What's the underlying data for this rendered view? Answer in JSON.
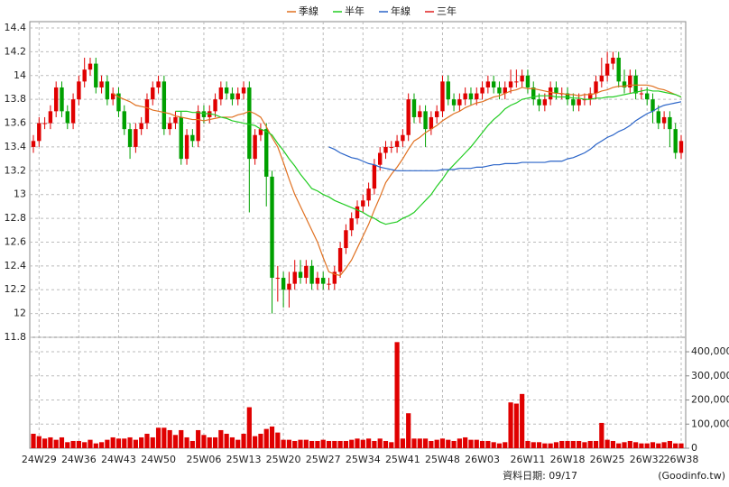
{
  "chart_data": {
    "type": "candlestick",
    "categories": [
      null,
      "24W29",
      null,
      null,
      null,
      null,
      null,
      null,
      "24W36",
      null,
      null,
      null,
      null,
      null,
      null,
      "24W43",
      null,
      null,
      null,
      null,
      null,
      null,
      "24W50",
      null,
      null,
      null,
      null,
      null,
      null,
      null,
      "25W06",
      null,
      null,
      null,
      null,
      null,
      null,
      "25W13",
      null,
      null,
      null,
      null,
      null,
      null,
      "25W20",
      null,
      null,
      null,
      null,
      null,
      null,
      "25W27",
      null,
      null,
      null,
      null,
      null,
      null,
      "25W34",
      null,
      null,
      null,
      null,
      null,
      null,
      "25W41",
      null,
      null,
      null,
      null,
      null,
      null,
      "25W48",
      null,
      null,
      null,
      null,
      null,
      null,
      "26W03",
      null,
      null,
      null,
      null,
      null,
      null,
      null,
      "26W11",
      null,
      null,
      null,
      null,
      null,
      null,
      "26W18",
      null,
      null,
      null,
      null,
      null,
      null,
      "26W25",
      null,
      null,
      null,
      null,
      null,
      null,
      "26W32",
      null,
      null,
      null,
      null,
      null,
      "26W38"
    ],
    "open": [
      13.4,
      13.45,
      13.6,
      13.6,
      13.7,
      13.9,
      13.7,
      13.6,
      13.8,
      13.95,
      14.05,
      14.1,
      13.9,
      13.95,
      13.8,
      13.85,
      13.7,
      13.55,
      13.4,
      13.55,
      13.6,
      13.8,
      13.9,
      13.95,
      13.55,
      13.6,
      13.65,
      13.3,
      13.5,
      13.45,
      13.7,
      13.65,
      13.7,
      13.8,
      13.9,
      13.85,
      13.8,
      13.85,
      13.9,
      13.3,
      13.5,
      13.55,
      13.15,
      12.3,
      12.3,
      12.2,
      12.25,
      12.35,
      12.3,
      12.4,
      12.25,
      12.3,
      12.25,
      12.25,
      12.35,
      12.55,
      12.7,
      12.8,
      12.9,
      12.95,
      13.05,
      13.25,
      13.35,
      13.4,
      13.4,
      13.45,
      13.5,
      13.8,
      13.65,
      13.7,
      13.55,
      13.65,
      13.7,
      13.95,
      13.8,
      13.75,
      13.8,
      13.85,
      13.8,
      13.85,
      13.9,
      13.95,
      13.9,
      13.85,
      13.9,
      13.95,
      13.95,
      14.0,
      13.9,
      13.8,
      13.75,
      13.8,
      13.9,
      13.85,
      13.85,
      13.8,
      13.75,
      13.8,
      13.8,
      13.85,
      13.95,
      14.0,
      14.1,
      14.15,
      13.95,
      13.9,
      14.0,
      13.85,
      13.85,
      13.8,
      13.7,
      13.6,
      13.65,
      13.55,
      13.35
    ],
    "high": [
      13.5,
      13.65,
      13.65,
      13.75,
      13.95,
      13.95,
      13.75,
      13.85,
      14.0,
      14.15,
      14.15,
      14.15,
      14.0,
      14.0,
      13.9,
      13.9,
      13.75,
      13.6,
      13.6,
      13.65,
      13.85,
      13.95,
      14.0,
      14.0,
      13.65,
      13.7,
      13.7,
      13.55,
      13.55,
      13.75,
      13.75,
      13.75,
      13.85,
      13.95,
      13.95,
      13.9,
      13.9,
      13.95,
      13.95,
      13.55,
      13.6,
      13.6,
      13.2,
      12.4,
      12.35,
      12.35,
      12.45,
      12.45,
      12.45,
      12.45,
      12.35,
      12.35,
      12.3,
      12.4,
      12.6,
      12.75,
      12.85,
      12.95,
      13.0,
      13.1,
      13.3,
      13.4,
      13.45,
      13.45,
      13.5,
      13.55,
      13.85,
      13.85,
      13.75,
      13.75,
      13.7,
      13.75,
      14.0,
      14.0,
      13.85,
      13.85,
      13.9,
      13.9,
      13.9,
      13.95,
      14.0,
      14.0,
      13.95,
      13.95,
      14.05,
      14.05,
      14.05,
      14.05,
      13.95,
      13.85,
      13.85,
      13.95,
      13.95,
      13.9,
      13.9,
      13.85,
      13.85,
      13.85,
      13.9,
      14.0,
      14.15,
      14.2,
      14.2,
      14.2,
      14.05,
      14.05,
      14.05,
      13.9,
      13.9,
      13.85,
      13.75,
      13.7,
      13.7,
      13.6,
      13.5
    ],
    "low": [
      13.35,
      13.4,
      13.55,
      13.55,
      13.65,
      13.65,
      13.55,
      13.55,
      13.75,
      13.9,
      14.0,
      13.85,
      13.85,
      13.75,
      13.75,
      13.65,
      13.5,
      13.3,
      13.35,
      13.5,
      13.55,
      13.75,
      13.85,
      13.5,
      13.5,
      13.55,
      13.25,
      13.25,
      13.4,
      13.4,
      13.6,
      13.6,
      13.65,
      13.75,
      13.8,
      13.75,
      13.75,
      13.8,
      12.85,
      13.25,
      13.45,
      12.9,
      12.0,
      12.1,
      12.05,
      12.05,
      12.2,
      12.25,
      12.25,
      12.2,
      12.2,
      12.2,
      12.2,
      12.2,
      12.3,
      12.5,
      12.65,
      12.75,
      12.85,
      12.9,
      13.0,
      13.2,
      13.3,
      13.35,
      13.35,
      13.4,
      13.45,
      13.6,
      13.6,
      13.4,
      13.5,
      13.6,
      13.65,
      13.75,
      13.7,
      13.7,
      13.75,
      13.75,
      13.75,
      13.8,
      13.85,
      13.85,
      13.8,
      13.8,
      13.85,
      13.9,
      13.9,
      13.85,
      13.75,
      13.7,
      13.7,
      13.75,
      13.8,
      13.8,
      13.75,
      13.7,
      13.7,
      13.75,
      13.75,
      13.8,
      13.9,
      13.95,
      14.05,
      13.9,
      13.85,
      13.85,
      13.8,
      13.8,
      13.75,
      13.6,
      13.55,
      13.55,
      13.4,
      13.3,
      13.3
    ],
    "close": [
      13.45,
      13.6,
      13.6,
      13.7,
      13.9,
      13.7,
      13.6,
      13.8,
      13.95,
      14.05,
      14.1,
      13.9,
      13.95,
      13.8,
      13.85,
      13.7,
      13.55,
      13.4,
      13.55,
      13.6,
      13.8,
      13.9,
      13.95,
      13.55,
      13.6,
      13.65,
      13.3,
      13.5,
      13.45,
      13.7,
      13.65,
      13.7,
      13.8,
      13.9,
      13.85,
      13.8,
      13.85,
      13.9,
      13.3,
      13.5,
      13.55,
      13.15,
      12.3,
      12.3,
      12.2,
      12.25,
      12.35,
      12.3,
      12.4,
      12.25,
      12.3,
      12.25,
      12.25,
      12.35,
      12.55,
      12.7,
      12.8,
      12.9,
      12.95,
      13.05,
      13.25,
      13.35,
      13.4,
      13.4,
      13.45,
      13.5,
      13.8,
      13.65,
      13.7,
      13.55,
      13.65,
      13.7,
      13.95,
      13.8,
      13.75,
      13.8,
      13.85,
      13.8,
      13.85,
      13.9,
      13.95,
      13.9,
      13.85,
      13.9,
      13.95,
      13.95,
      14.0,
      13.9,
      13.8,
      13.75,
      13.8,
      13.9,
      13.85,
      13.85,
      13.8,
      13.75,
      13.8,
      13.8,
      13.85,
      13.95,
      14.0,
      14.1,
      14.15,
      13.95,
      13.9,
      14.0,
      13.85,
      13.85,
      13.8,
      13.7,
      13.6,
      13.65,
      13.55,
      13.35,
      13.45
    ],
    "volume": [
      60000,
      50000,
      40000,
      45000,
      35000,
      45000,
      25000,
      30000,
      30000,
      25000,
      35000,
      20000,
      25000,
      35000,
      45000,
      40000,
      40000,
      45000,
      35000,
      45000,
      60000,
      45000,
      85000,
      85000,
      75000,
      55000,
      75000,
      45000,
      30000,
      75000,
      55000,
      45000,
      45000,
      75000,
      60000,
      45000,
      35000,
      60000,
      170000,
      50000,
      60000,
      80000,
      90000,
      65000,
      35000,
      35000,
      30000,
      35000,
      35000,
      30000,
      30000,
      35000,
      30000,
      30000,
      30000,
      30000,
      35000,
      40000,
      35000,
      40000,
      30000,
      40000,
      30000,
      25000,
      440000,
      40000,
      145000,
      40000,
      40000,
      40000,
      30000,
      35000,
      40000,
      35000,
      30000,
      40000,
      45000,
      35000,
      35000,
      30000,
      30000,
      25000,
      20000,
      25000,
      190000,
      185000,
      225000,
      30000,
      25000,
      25000,
      20000,
      20000,
      25000,
      30000,
      30000,
      30000,
      30000,
      25000,
      30000,
      30000,
      105000,
      35000,
      30000,
      20000,
      25000,
      30000,
      25000,
      20000,
      20000,
      25000,
      20000,
      25000,
      30000,
      20000,
      20000
    ],
    "up_color": "#e00000",
    "down_color": "#00a000",
    "volume_color": "#e00000",
    "series": [
      {
        "name": "季線",
        "color": "#e07020",
        "values": [
          null,
          null,
          null,
          null,
          null,
          null,
          null,
          null,
          null,
          null,
          null,
          null,
          null,
          null,
          13.85,
          13.82,
          13.8,
          13.78,
          13.75,
          13.74,
          13.73,
          13.71,
          13.7,
          13.69,
          13.68,
          13.66,
          13.65,
          13.64,
          13.63,
          13.63,
          13.62,
          13.63,
          13.64,
          13.65,
          13.65,
          13.65,
          13.67,
          13.68,
          13.7,
          13.68,
          13.65,
          13.57,
          13.48,
          13.4,
          13.27,
          13.13,
          13.0,
          12.9,
          12.8,
          12.7,
          12.6,
          12.47,
          12.35,
          12.33,
          12.32,
          12.38,
          12.45,
          12.55,
          12.65,
          12.75,
          12.87,
          12.98,
          13.1,
          13.17,
          13.23,
          13.3,
          13.38,
          13.45,
          13.48,
          13.52,
          13.55,
          13.58,
          13.62,
          13.65,
          13.68,
          13.7,
          13.73,
          13.75,
          13.77,
          13.78,
          13.8,
          13.82,
          13.83,
          13.85,
          13.87,
          13.88,
          13.9,
          13.89,
          13.89,
          13.88,
          13.87,
          13.86,
          13.85,
          13.85,
          13.84,
          13.84,
          13.83,
          13.84,
          13.84,
          13.85,
          13.87,
          13.88,
          13.9,
          13.91,
          13.91,
          13.92,
          13.92,
          13.92,
          13.92,
          13.91,
          13.89,
          13.88,
          13.86,
          13.84,
          13.82
        ]
      },
      {
        "name": "半年",
        "color": "#22cc22",
        "values": [
          null,
          null,
          null,
          null,
          null,
          null,
          null,
          null,
          null,
          null,
          null,
          null,
          null,
          null,
          null,
          null,
          null,
          null,
          null,
          null,
          null,
          null,
          null,
          null,
          null,
          13.7,
          13.7,
          13.7,
          13.69,
          13.69,
          13.68,
          13.68,
          13.67,
          13.65,
          13.64,
          13.62,
          13.61,
          13.6,
          13.59,
          13.58,
          13.55,
          13.53,
          13.5,
          13.43,
          13.37,
          13.3,
          13.24,
          13.17,
          13.11,
          13.05,
          13.03,
          13.0,
          12.98,
          12.95,
          12.93,
          12.91,
          12.89,
          12.87,
          12.85,
          12.82,
          12.8,
          12.77,
          12.75,
          12.76,
          12.77,
          12.8,
          12.82,
          12.85,
          12.9,
          12.95,
          13.0,
          13.07,
          13.13,
          13.2,
          13.25,
          13.3,
          13.35,
          13.4,
          13.46,
          13.52,
          13.58,
          13.63,
          13.67,
          13.72,
          13.75,
          13.77,
          13.8,
          13.81,
          13.82,
          13.83,
          13.83,
          13.83,
          13.82,
          13.82,
          13.82,
          13.81,
          13.81,
          13.8,
          13.8,
          13.81,
          13.81,
          13.82,
          13.82,
          13.83,
          13.84,
          13.85,
          13.86,
          13.87,
          13.88,
          13.87,
          13.87,
          13.86,
          13.85,
          13.84,
          13.82
        ]
      },
      {
        "name": "年線",
        "color": "#2a64c8",
        "values": [
          null,
          null,
          null,
          null,
          null,
          null,
          null,
          null,
          null,
          null,
          null,
          null,
          null,
          null,
          null,
          null,
          null,
          null,
          null,
          null,
          null,
          null,
          null,
          null,
          null,
          null,
          null,
          null,
          null,
          null,
          null,
          null,
          null,
          null,
          null,
          null,
          null,
          null,
          null,
          null,
          null,
          null,
          null,
          null,
          null,
          null,
          null,
          null,
          null,
          null,
          null,
          null,
          13.4,
          13.38,
          13.35,
          13.33,
          13.31,
          13.3,
          13.28,
          13.26,
          13.25,
          13.23,
          13.22,
          13.21,
          13.2,
          13.2,
          13.2,
          13.2,
          13.2,
          13.2,
          13.2,
          13.2,
          13.21,
          13.21,
          13.21,
          13.22,
          13.22,
          13.22,
          13.23,
          13.23,
          13.24,
          13.25,
          13.25,
          13.26,
          13.26,
          13.26,
          13.27,
          13.27,
          13.27,
          13.27,
          13.27,
          13.28,
          13.28,
          13.28,
          13.3,
          13.31,
          13.33,
          13.35,
          13.38,
          13.42,
          13.45,
          13.48,
          13.5,
          13.53,
          13.55,
          13.58,
          13.62,
          13.65,
          13.68,
          13.7,
          13.73,
          13.75,
          13.76,
          13.77,
          13.78
        ]
      },
      {
        "name": "三年",
        "color": "#e02020",
        "values": [
          null,
          null,
          null,
          null,
          null,
          null,
          null,
          null,
          null,
          null,
          null,
          null,
          null,
          null,
          null,
          null,
          null,
          null,
          null,
          null,
          null,
          null,
          null,
          null,
          null,
          null,
          null,
          null,
          null,
          null,
          null,
          null,
          null,
          null,
          null,
          null,
          null,
          null,
          null,
          null,
          null,
          null,
          null,
          null,
          null,
          null,
          null,
          null,
          null,
          null,
          null,
          null,
          null,
          null,
          null,
          null,
          null,
          null,
          null,
          null,
          null,
          null,
          null,
          null,
          null,
          null,
          null,
          null,
          null,
          null,
          null,
          null,
          null,
          null,
          null,
          null,
          null,
          null,
          null,
          null,
          null,
          null,
          null,
          null,
          null,
          null,
          null,
          null,
          null,
          null,
          null,
          null,
          null,
          null,
          null,
          null,
          null,
          null,
          null,
          null,
          null,
          null,
          null,
          null,
          null,
          null,
          null,
          null,
          null,
          null,
          null,
          null,
          null,
          null,
          null
        ]
      }
    ],
    "ylim": [
      11.8,
      14.4
    ],
    "yticks": [
      11.8,
      12,
      12.2,
      12.4,
      12.6,
      12.8,
      13,
      13.2,
      13.4,
      13.6,
      13.8,
      14,
      14.2,
      14.4
    ],
    "y2lim": [
      0,
      460000
    ],
    "y2ticks": [
      0,
      {
        "value": 100000,
        "label": "100,000"
      },
      {
        "value": 200000,
        "label": "200,000"
      },
      {
        "value": 300000,
        "label": "300,000"
      },
      {
        "value": 400000,
        "label": "400,000"
      }
    ],
    "grid": true,
    "source_date": "資料日期: 09/17",
    "source": "(Goodinfo.tw)"
  }
}
